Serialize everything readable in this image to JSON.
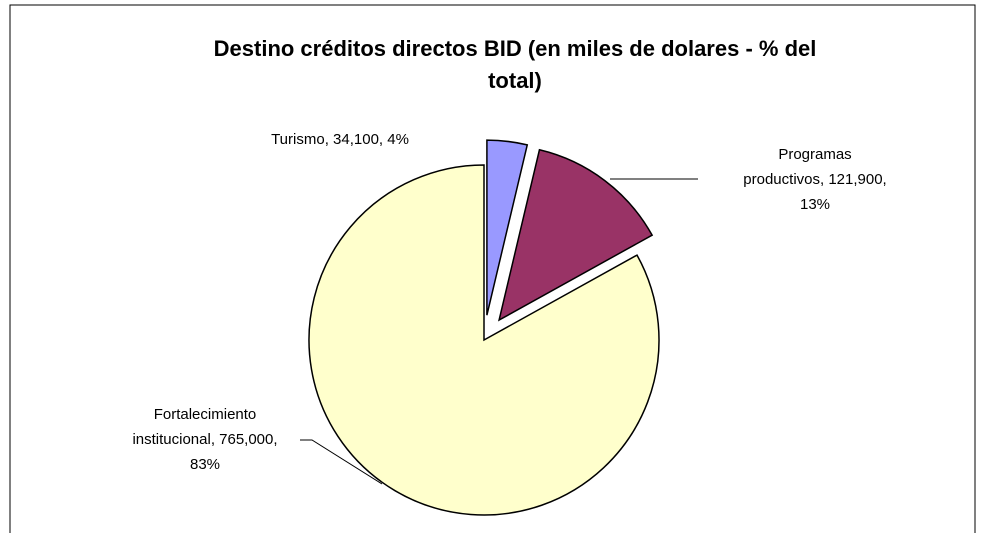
{
  "chart_data": {
    "type": "pie",
    "title": [
      "Destino créditos directos BID  (en miles de dolares - % del",
      "total)"
    ],
    "categories": [
      "Turismo",
      "Programas productivos",
      "Fortalecimiento institucional"
    ],
    "values": [
      34100,
      121900,
      765000
    ],
    "value_labels": [
      [
        "Turismo, 34,100, 4%"
      ],
      [
        "Programas",
        "productivos, 121,900,",
        "13%"
      ],
      [
        "Fortalecimiento",
        "institucional, 765,000,",
        "83%"
      ]
    ],
    "colors": [
      "#9999ff",
      "#993366",
      "#ffffcc"
    ],
    "explode": [
      true,
      true,
      false
    ]
  }
}
